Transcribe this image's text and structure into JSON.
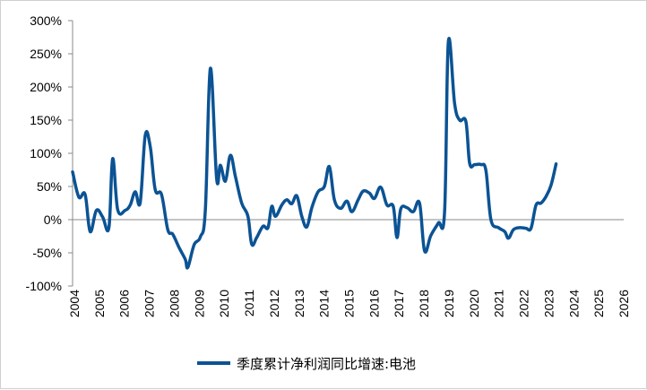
{
  "chart_data": {
    "type": "line",
    "title": "",
    "xlabel": "",
    "ylabel": "",
    "y_unit": "%",
    "ylim": [
      -100,
      300
    ],
    "y_ticks": [
      300,
      250,
      200,
      150,
      100,
      50,
      0,
      -50,
      -100
    ],
    "y_tick_labels": [
      "300%",
      "250%",
      "200%",
      "150%",
      "100%",
      "50%",
      "0%",
      "-50%",
      "-100%"
    ],
    "xlim": [
      2004,
      2026
    ],
    "x_tick_labels": [
      "2004",
      "2005",
      "2006",
      "2007",
      "2008",
      "2009",
      "2010",
      "2011",
      "2012",
      "2013",
      "2014",
      "2015",
      "2016",
      "2017",
      "2018",
      "2019",
      "2020",
      "2021",
      "2022",
      "2023",
      "2024",
      "2025",
      "2026"
    ],
    "grid": false,
    "legend_position": "bottom",
    "series": [
      {
        "name": "季度累计净利润同比增速:电池",
        "color": "#0b5394",
        "points": [
          [
            2004.0,
            72
          ],
          [
            2004.25,
            34
          ],
          [
            2004.5,
            38
          ],
          [
            2004.7,
            -18
          ],
          [
            2004.95,
            14
          ],
          [
            2005.2,
            4
          ],
          [
            2005.45,
            -12
          ],
          [
            2005.6,
            92
          ],
          [
            2005.8,
            15
          ],
          [
            2006.1,
            14
          ],
          [
            2006.3,
            22
          ],
          [
            2006.5,
            42
          ],
          [
            2006.7,
            26
          ],
          [
            2006.9,
            127
          ],
          [
            2007.1,
            110
          ],
          [
            2007.3,
            45
          ],
          [
            2007.55,
            38
          ],
          [
            2007.8,
            -15
          ],
          [
            2008.0,
            -22
          ],
          [
            2008.25,
            -42
          ],
          [
            2008.5,
            -60
          ],
          [
            2008.6,
            -72
          ],
          [
            2008.85,
            -38
          ],
          [
            2009.1,
            -26
          ],
          [
            2009.3,
            15
          ],
          [
            2009.5,
            228
          ],
          [
            2009.75,
            62
          ],
          [
            2009.9,
            82
          ],
          [
            2010.1,
            58
          ],
          [
            2010.3,
            97
          ],
          [
            2010.5,
            65
          ],
          [
            2010.75,
            25
          ],
          [
            2011.0,
            5
          ],
          [
            2011.15,
            -37
          ],
          [
            2011.35,
            -27
          ],
          [
            2011.6,
            -10
          ],
          [
            2011.8,
            -12
          ],
          [
            2011.95,
            20
          ],
          [
            2012.1,
            5
          ],
          [
            2012.35,
            22
          ],
          [
            2012.55,
            30
          ],
          [
            2012.75,
            24
          ],
          [
            2012.95,
            36
          ],
          [
            2013.15,
            5
          ],
          [
            2013.35,
            -11
          ],
          [
            2013.55,
            18
          ],
          [
            2013.8,
            42
          ],
          [
            2014.05,
            50
          ],
          [
            2014.25,
            80
          ],
          [
            2014.45,
            30
          ],
          [
            2014.7,
            17
          ],
          [
            2014.95,
            28
          ],
          [
            2015.15,
            12
          ],
          [
            2015.4,
            30
          ],
          [
            2015.6,
            43
          ],
          [
            2015.85,
            40
          ],
          [
            2016.05,
            32
          ],
          [
            2016.3,
            49
          ],
          [
            2016.55,
            22
          ],
          [
            2016.8,
            20
          ],
          [
            2016.95,
            -27
          ],
          [
            2017.1,
            16
          ],
          [
            2017.35,
            18
          ],
          [
            2017.6,
            12
          ],
          [
            2017.85,
            25
          ],
          [
            2018.05,
            -47
          ],
          [
            2018.3,
            -24
          ],
          [
            2018.6,
            -5
          ],
          [
            2018.85,
            12
          ],
          [
            2019.0,
            268
          ],
          [
            2019.25,
            175
          ],
          [
            2019.45,
            150
          ],
          [
            2019.7,
            148
          ],
          [
            2019.85,
            85
          ],
          [
            2020.05,
            83
          ],
          [
            2020.3,
            83
          ],
          [
            2020.5,
            74
          ],
          [
            2020.7,
            0
          ],
          [
            2021.0,
            -12
          ],
          [
            2021.25,
            -18
          ],
          [
            2021.4,
            -28
          ],
          [
            2021.6,
            -15
          ],
          [
            2021.85,
            -12
          ],
          [
            2022.1,
            -13
          ],
          [
            2022.3,
            -13
          ],
          [
            2022.5,
            22
          ],
          [
            2022.7,
            25
          ],
          [
            2022.9,
            35
          ],
          [
            2023.1,
            52
          ],
          [
            2023.3,
            84
          ]
        ]
      }
    ]
  }
}
